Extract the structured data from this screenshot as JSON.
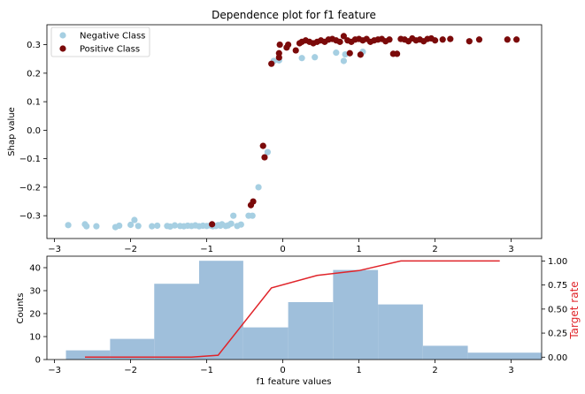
{
  "chart_data": [
    {
      "type": "scatter",
      "title": "Dependence plot for f1 feature",
      "xlabel": "",
      "ylabel": "Shap value",
      "xlim": [
        -3.1,
        3.4
      ],
      "ylim": [
        -0.38,
        0.37
      ],
      "xticks": [
        "−3",
        "−2",
        "−1",
        "0",
        "1",
        "2",
        "3"
      ],
      "yticks": [
        "−0.3",
        "−0.2",
        "−0.1",
        "0.0",
        "0.1",
        "0.2",
        "0.3"
      ],
      "legend_position": "top-left",
      "series": [
        {
          "name": "Negative Class",
          "color": "#a6cfe2",
          "points": [
            [
              -2.82,
              -0.333
            ],
            [
              -2.6,
              -0.33
            ],
            [
              -2.58,
              -0.337
            ],
            [
              -2.45,
              -0.337
            ],
            [
              -2.2,
              -0.34
            ],
            [
              -2.15,
              -0.335
            ],
            [
              -2.0,
              -0.332
            ],
            [
              -1.95,
              -0.315
            ],
            [
              -1.9,
              -0.336
            ],
            [
              -1.72,
              -0.337
            ],
            [
              -1.65,
              -0.335
            ],
            [
              -1.52,
              -0.336
            ],
            [
              -1.48,
              -0.338
            ],
            [
              -1.42,
              -0.334
            ],
            [
              -1.35,
              -0.336
            ],
            [
              -1.3,
              -0.337
            ],
            [
              -1.25,
              -0.335
            ],
            [
              -1.2,
              -0.336
            ],
            [
              -1.15,
              -0.334
            ],
            [
              -1.1,
              -0.337
            ],
            [
              -1.05,
              -0.335
            ],
            [
              -1.0,
              -0.336
            ],
            [
              -0.95,
              -0.334
            ],
            [
              -0.92,
              -0.337
            ],
            [
              -0.88,
              -0.336
            ],
            [
              -0.85,
              -0.333
            ],
            [
              -0.82,
              -0.335
            ],
            [
              -0.8,
              -0.33
            ],
            [
              -0.75,
              -0.336
            ],
            [
              -0.72,
              -0.334
            ],
            [
              -0.68,
              -0.328
            ],
            [
              -0.65,
              -0.3
            ],
            [
              -0.6,
              -0.336
            ],
            [
              -0.55,
              -0.331
            ],
            [
              -0.45,
              -0.3
            ],
            [
              -0.4,
              -0.3
            ],
            [
              -0.32,
              -0.2
            ],
            [
              -0.2,
              -0.077
            ],
            [
              -0.12,
              0.243
            ],
            [
              -0.05,
              0.245
            ],
            [
              0.25,
              0.253
            ],
            [
              0.42,
              0.256
            ],
            [
              0.7,
              0.272
            ],
            [
              0.8,
              0.243
            ],
            [
              0.82,
              0.266
            ],
            [
              1.05,
              0.275
            ]
          ]
        },
        {
          "name": "Positive Class",
          "color": "#7b0a0a",
          "points": [
            [
              -0.93,
              -0.33
            ],
            [
              -0.42,
              -0.263
            ],
            [
              -0.39,
              -0.25
            ],
            [
              -0.26,
              -0.055
            ],
            [
              -0.24,
              -0.095
            ],
            [
              -0.15,
              0.233
            ],
            [
              -0.05,
              0.27
            ],
            [
              -0.05,
              0.255
            ],
            [
              -0.04,
              0.3
            ],
            [
              0.05,
              0.29
            ],
            [
              0.07,
              0.3
            ],
            [
              0.17,
              0.28
            ],
            [
              0.22,
              0.305
            ],
            [
              0.25,
              0.31
            ],
            [
              0.3,
              0.315
            ],
            [
              0.35,
              0.31
            ],
            [
              0.4,
              0.305
            ],
            [
              0.45,
              0.31
            ],
            [
              0.5,
              0.315
            ],
            [
              0.55,
              0.31
            ],
            [
              0.6,
              0.318
            ],
            [
              0.65,
              0.32
            ],
            [
              0.7,
              0.315
            ],
            [
              0.75,
              0.31
            ],
            [
              0.8,
              0.33
            ],
            [
              0.85,
              0.315
            ],
            [
              0.88,
              0.27
            ],
            [
              0.9,
              0.31
            ],
            [
              0.95,
              0.318
            ],
            [
              1.0,
              0.32
            ],
            [
              1.02,
              0.265
            ],
            [
              1.05,
              0.315
            ],
            [
              1.1,
              0.32
            ],
            [
              1.15,
              0.31
            ],
            [
              1.2,
              0.315
            ],
            [
              1.25,
              0.318
            ],
            [
              1.3,
              0.32
            ],
            [
              1.35,
              0.312
            ],
            [
              1.4,
              0.318
            ],
            [
              1.45,
              0.268
            ],
            [
              1.5,
              0.268
            ],
            [
              1.55,
              0.32
            ],
            [
              1.6,
              0.318
            ],
            [
              1.65,
              0.312
            ],
            [
              1.7,
              0.322
            ],
            [
              1.75,
              0.315
            ],
            [
              1.8,
              0.318
            ],
            [
              1.85,
              0.312
            ],
            [
              1.9,
              0.32
            ],
            [
              1.95,
              0.322
            ],
            [
              2.0,
              0.315
            ],
            [
              2.1,
              0.318
            ],
            [
              2.2,
              0.32
            ],
            [
              2.45,
              0.312
            ],
            [
              2.58,
              0.318
            ],
            [
              2.95,
              0.318
            ],
            [
              3.07,
              0.318
            ]
          ]
        }
      ]
    },
    {
      "type": "bar",
      "title": "",
      "xlabel": "f1 feature values",
      "ylabel": "Counts",
      "y2label": "Target rate",
      "xlim": [
        -3.1,
        3.4
      ],
      "ylim": [
        0,
        45
      ],
      "y2lim": [
        -0.025,
        1.05
      ],
      "xticks": [
        "−3",
        "−2",
        "−1",
        "0",
        "1",
        "2",
        "3"
      ],
      "yticks": [
        "0",
        "10",
        "20",
        "30",
        "40"
      ],
      "y2ticks": [
        "0.00",
        "0.25",
        "0.50",
        "0.75",
        "1.00"
      ],
      "bar_color": "#9fbfdb",
      "line_color": "#e0242a",
      "bins": [
        {
          "start": -2.85,
          "end": -2.27,
          "count": 4
        },
        {
          "start": -2.27,
          "end": -1.69,
          "count": 9
        },
        {
          "start": -1.69,
          "end": -1.1,
          "count": 33
        },
        {
          "start": -1.1,
          "end": -0.52,
          "count": 43
        },
        {
          "start": -0.52,
          "end": 0.07,
          "count": 14
        },
        {
          "start": 0.07,
          "end": 0.66,
          "count": 25
        },
        {
          "start": 0.66,
          "end": 1.25,
          "count": 39
        },
        {
          "start": 1.25,
          "end": 1.84,
          "count": 24
        },
        {
          "start": 1.84,
          "end": 2.43,
          "count": 6
        },
        {
          "start": 2.43,
          "end": 3.4,
          "count": 3
        }
      ],
      "target_rate": {
        "x": [
          -2.6,
          -2.0,
          -1.2,
          -0.85,
          -0.15,
          0.45,
          1.0,
          1.55,
          2.85
        ],
        "y": [
          0.0,
          0.0,
          0.0,
          0.02,
          0.72,
          0.85,
          0.9,
          1.0,
          1.0
        ]
      }
    }
  ]
}
